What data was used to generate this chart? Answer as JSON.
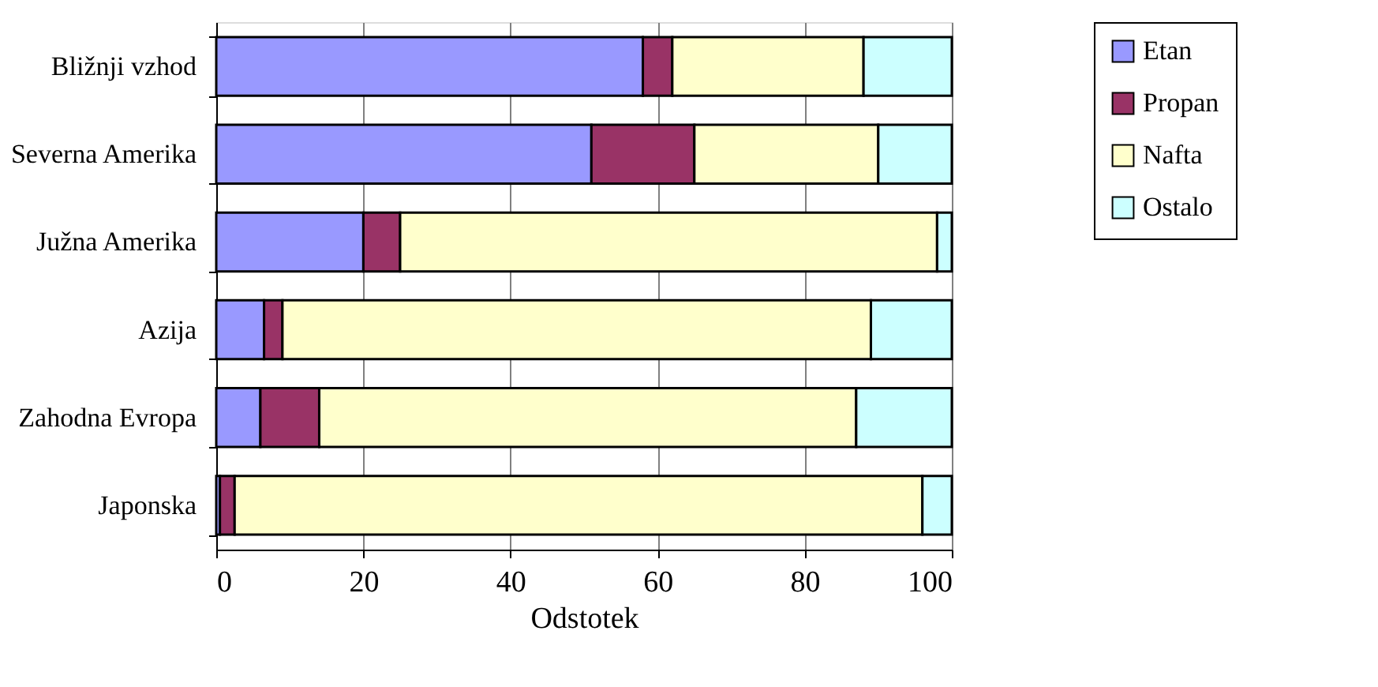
{
  "chart_data": {
    "type": "bar",
    "orientation": "horizontal",
    "stacked": true,
    "categories": [
      "Bližnji vzhod",
      "Severna Amerika",
      "Južna Amerika",
      "Azija",
      "Zahodna Evropa",
      "Japonska"
    ],
    "series": [
      {
        "name": "Etan",
        "color": "#9999ff",
        "values": [
          58,
          51,
          20,
          6.5,
          6,
          0.5
        ]
      },
      {
        "name": "Propan",
        "color": "#993366",
        "values": [
          4,
          14,
          5,
          2.5,
          8,
          2
        ]
      },
      {
        "name": "Nafta",
        "color": "#ffffcc",
        "values": [
          26,
          25,
          73,
          80,
          73,
          93.5
        ]
      },
      {
        "name": "Ostalo",
        "color": "#ccffff",
        "values": [
          12,
          10,
          2,
          11,
          13,
          4
        ]
      }
    ],
    "xlabel": "Odstotek",
    "xlim": [
      0,
      100
    ],
    "xticks": [
      0,
      20,
      40,
      60,
      80,
      100
    ],
    "grid": "x",
    "legend": "right"
  }
}
